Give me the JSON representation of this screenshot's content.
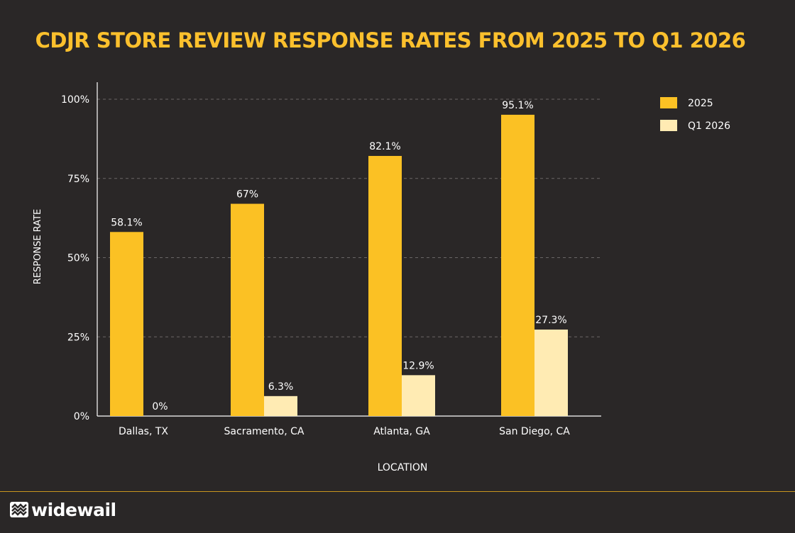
{
  "chart_data": {
    "type": "bar",
    "title": "CDJR STORE REVIEW RESPONSE RATES FROM 2025 TO Q1 2026",
    "xlabel": "LOCATION",
    "ylabel": "RESPONSE RATE",
    "categories": [
      "Dallas, TX",
      "Sacramento, CA",
      "Atlanta, GA",
      "San Diego, CA"
    ],
    "series": [
      {
        "name": "2025",
        "color": "#fbc124",
        "values": [
          58.1,
          67,
          82.1,
          95.1
        ],
        "labels": [
          "58.1%",
          "67%",
          "82.1%",
          "95.1%"
        ]
      },
      {
        "name": "Q1 2026",
        "color": "#ffebb3",
        "values": [
          0,
          6.3,
          12.9,
          27.3
        ],
        "labels": [
          "0%",
          "6.3%",
          "12.9%",
          "27.3%"
        ]
      }
    ],
    "ylim": [
      0,
      100
    ],
    "yticks": [
      0,
      25,
      50,
      75,
      100
    ],
    "ytick_labels": [
      "0%",
      "25%",
      "50%",
      "75%",
      "100%"
    ],
    "grid": true,
    "legend": "top-right"
  },
  "brand": {
    "name": "widewail"
  }
}
